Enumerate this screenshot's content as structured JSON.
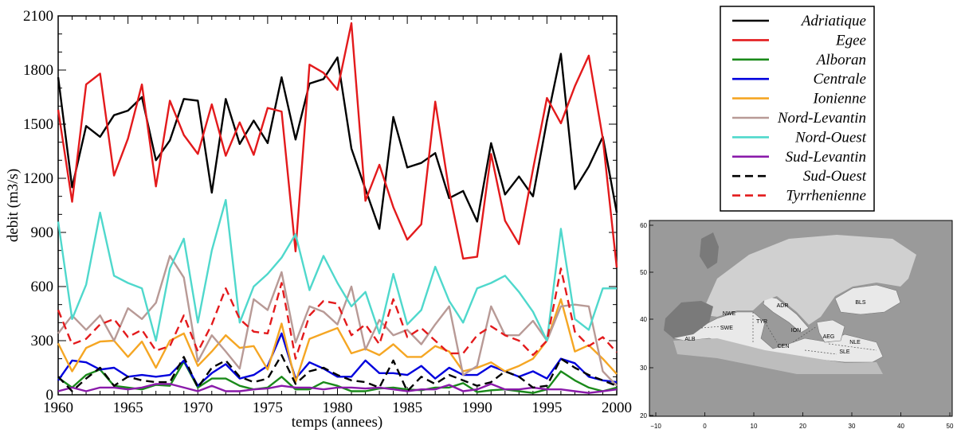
{
  "colors": {
    "Adriatique": "#000000",
    "Egee": "#e31a1c",
    "Alboran": "#1a8a1a",
    "Centrale": "#0000dd",
    "Ionienne": "#f5a623",
    "Nord-Levantin": "#b89a96",
    "Nord-Ouest": "#4fd8cc",
    "Sud-Levantin": "#8a1aaa",
    "Sud-Ouest": "#000000",
    "Tyrrhenienne": "#e31a1c"
  },
  "chart_data": {
    "type": "line",
    "xlabel": "temps (annees)",
    "ylabel": "debit (m3/s)",
    "xlim": [
      1960,
      2000
    ],
    "ylim": [
      0,
      2100
    ],
    "xticks": [
      "1960",
      "1965",
      "1970",
      "1975",
      "1980",
      "1985",
      "1990",
      "1995",
      "2000"
    ],
    "yticks": [
      "0",
      "300",
      "600",
      "900",
      "1200",
      "1500",
      "1800",
      "2100"
    ],
    "x": [
      1960,
      1961,
      1962,
      1963,
      1964,
      1965,
      1966,
      1967,
      1968,
      1969,
      1970,
      1971,
      1972,
      1973,
      1974,
      1975,
      1976,
      1977,
      1978,
      1979,
      1980,
      1981,
      1982,
      1983,
      1984,
      1985,
      1986,
      1987,
      1988,
      1989,
      1990,
      1991,
      1992,
      1993,
      1994,
      1995,
      1996,
      1997,
      1998,
      1999,
      2000
    ],
    "legend_position": "top-right",
    "series": [
      {
        "name": "Adriatique",
        "dash": false,
        "values": [
          1760,
          1150,
          1490,
          1430,
          1550,
          1575,
          1650,
          1300,
          1410,
          1640,
          1630,
          1120,
          1640,
          1390,
          1520,
          1395,
          1760,
          1415,
          1725,
          1750,
          1870,
          1365,
          1140,
          920,
          1540,
          1260,
          1285,
          1340,
          1090,
          1130,
          960,
          1395,
          1110,
          1210,
          1100,
          1520,
          1890,
          1140,
          1265,
          1430,
          1010
        ]
      },
      {
        "name": "Egee",
        "dash": false,
        "values": [
          1580,
          1070,
          1720,
          1780,
          1215,
          1420,
          1720,
          1155,
          1630,
          1440,
          1335,
          1610,
          1325,
          1510,
          1330,
          1590,
          1570,
          795,
          1830,
          1785,
          1690,
          2060,
          1075,
          1275,
          1040,
          860,
          945,
          1625,
          1130,
          755,
          765,
          1335,
          965,
          835,
          1250,
          1645,
          1505,
          1710,
          1880,
          1420,
          705
        ]
      },
      {
        "name": "Alboran",
        "dash": false,
        "values": [
          95,
          40,
          110,
          140,
          50,
          40,
          30,
          55,
          50,
          185,
          40,
          90,
          90,
          50,
          30,
          40,
          100,
          30,
          30,
          70,
          50,
          20,
          20,
          35,
          40,
          30,
          25,
          40,
          40,
          65,
          15,
          25,
          30,
          20,
          10,
          30,
          130,
          80,
          40,
          20,
          40
        ]
      },
      {
        "name": "Centrale",
        "dash": false,
        "values": [
          80,
          190,
          180,
          140,
          150,
          100,
          110,
          100,
          110,
          190,
          50,
          120,
          170,
          90,
          110,
          160,
          340,
          90,
          180,
          145,
          100,
          100,
          190,
          120,
          120,
          110,
          160,
          90,
          150,
          110,
          110,
          160,
          130,
          100,
          130,
          90,
          200,
          175,
          100,
          80,
          70
        ]
      },
      {
        "name": "Ionienne",
        "dash": false,
        "values": [
          285,
          130,
          260,
          295,
          300,
          210,
          295,
          150,
          300,
          340,
          160,
          240,
          330,
          260,
          270,
          140,
          395,
          70,
          310,
          340,
          370,
          230,
          255,
          220,
          280,
          210,
          210,
          270,
          240,
          130,
          150,
          180,
          130,
          160,
          200,
          300,
          530,
          240,
          275,
          200,
          115
        ]
      },
      {
        "name": "Nord-Levantin",
        "dash": false,
        "values": [
          340,
          440,
          360,
          440,
          300,
          480,
          420,
          510,
          770,
          650,
          185,
          330,
          240,
          145,
          530,
          470,
          680,
          290,
          490,
          460,
          390,
          600,
          250,
          415,
          330,
          360,
          280,
          390,
          490,
          110,
          160,
          490,
          330,
          330,
          410,
          300,
          490,
          500,
          490,
          130,
          50
        ]
      },
      {
        "name": "Nord-Ouest",
        "dash": false,
        "values": [
          960,
          420,
          610,
          1010,
          660,
          620,
          590,
          300,
          700,
          865,
          400,
          800,
          1080,
          400,
          600,
          670,
          760,
          890,
          580,
          770,
          620,
          490,
          570,
          340,
          670,
          390,
          470,
          710,
          520,
          400,
          590,
          620,
          660,
          570,
          460,
          300,
          920,
          420,
          360,
          590,
          590
        ]
      },
      {
        "name": "Sud-Levantin",
        "dash": false,
        "values": [
          20,
          40,
          20,
          40,
          40,
          30,
          40,
          60,
          60,
          40,
          20,
          50,
          20,
          20,
          30,
          35,
          50,
          40,
          40,
          30,
          40,
          40,
          35,
          40,
          30,
          20,
          30,
          30,
          55,
          20,
          30,
          60,
          30,
          30,
          40,
          30,
          30,
          20,
          10,
          20,
          30
        ]
      },
      {
        "name": "Sud-Ouest",
        "dash": true,
        "values": [
          100,
          20,
          90,
          150,
          50,
          100,
          80,
          70,
          70,
          210,
          40,
          150,
          190,
          100,
          70,
          90,
          220,
          60,
          130,
          150,
          110,
          80,
          70,
          40,
          190,
          20,
          100,
          60,
          110,
          80,
          50,
          70,
          130,
          100,
          40,
          50,
          200,
          150,
          110,
          80,
          50
        ]
      },
      {
        "name": "Tyrrhenienne",
        "dash": true,
        "values": [
          470,
          280,
          310,
          390,
          420,
          320,
          360,
          245,
          270,
          440,
          240,
          390,
          590,
          420,
          350,
          340,
          620,
          200,
          440,
          520,
          505,
          330,
          390,
          280,
          530,
          320,
          370,
          300,
          230,
          230,
          330,
          380,
          330,
          300,
          220,
          300,
          700,
          350,
          270,
          320,
          235
        ]
      }
    ]
  },
  "map": {
    "lat_ticks": [
      "60",
      "50",
      "40",
      "30",
      "20"
    ],
    "lon_ticks": [
      "−10",
      "0",
      "10",
      "20",
      "30",
      "40",
      "50"
    ],
    "labels": [
      "NWE",
      "SWE",
      "ALB",
      "TYR",
      "ADR",
      "ION",
      "CEN",
      "AEG",
      "NLE",
      "SLE",
      "BLS"
    ]
  }
}
